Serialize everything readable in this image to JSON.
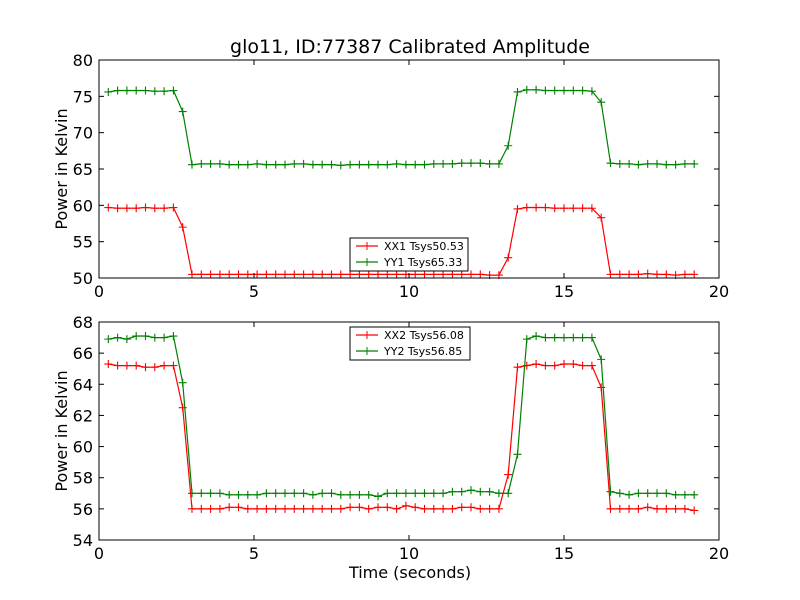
{
  "figure": {
    "title": "glo11, ID:77387 Calibrated Amplitude",
    "xlabel": "Time (seconds)"
  },
  "chart_data": [
    {
      "type": "line",
      "title": "glo11, ID:77387 Calibrated Amplitude",
      "xlabel": "",
      "ylabel": "Power in Kelvin",
      "xlim": [
        0,
        20
      ],
      "ylim": [
        50,
        80
      ],
      "xticks": [
        0,
        5,
        10,
        15,
        20
      ],
      "yticks": [
        50,
        55,
        60,
        65,
        70,
        75,
        80
      ],
      "legend_position": "lower-center",
      "x": [
        0.3,
        0.6,
        0.9,
        1.2,
        1.5,
        1.8,
        2.1,
        2.4,
        2.7,
        3.0,
        3.3,
        3.6,
        3.9,
        4.2,
        4.5,
        4.8,
        5.1,
        5.4,
        5.7,
        6.0,
        6.3,
        6.6,
        6.9,
        7.2,
        7.5,
        7.8,
        8.1,
        8.4,
        8.7,
        9.0,
        9.3,
        9.6,
        9.9,
        10.2,
        10.5,
        10.8,
        11.1,
        11.4,
        11.7,
        12.0,
        12.3,
        12.6,
        12.9,
        13.2,
        13.5,
        13.8,
        14.1,
        14.4,
        14.7,
        15.0,
        15.3,
        15.6,
        15.9,
        16.2,
        16.5,
        16.8,
        17.1,
        17.4,
        17.7,
        18.0,
        18.3,
        18.6,
        18.9,
        19.2
      ],
      "series": [
        {
          "name": "XX1 Tsys50.53",
          "color": "#ff0000",
          "values": [
            59.7,
            59.6,
            59.6,
            59.6,
            59.7,
            59.6,
            59.6,
            59.7,
            57.0,
            50.5,
            50.5,
            50.5,
            50.5,
            50.5,
            50.5,
            50.5,
            50.5,
            50.5,
            50.5,
            50.5,
            50.5,
            50.5,
            50.5,
            50.5,
            50.5,
            50.5,
            50.5,
            50.5,
            50.5,
            50.5,
            50.5,
            50.5,
            50.5,
            50.5,
            50.5,
            50.5,
            50.5,
            50.5,
            50.5,
            50.5,
            50.5,
            50.4,
            50.4,
            52.8,
            59.5,
            59.7,
            59.7,
            59.7,
            59.6,
            59.6,
            59.6,
            59.6,
            59.6,
            58.3,
            50.5,
            50.5,
            50.5,
            50.5,
            50.6,
            50.5,
            50.5,
            50.4,
            50.5,
            50.5
          ]
        },
        {
          "name": "YY1 Tsys65.33",
          "color": "#008000",
          "values": [
            75.6,
            75.8,
            75.8,
            75.8,
            75.8,
            75.7,
            75.7,
            75.8,
            72.9,
            65.6,
            65.7,
            65.7,
            65.7,
            65.6,
            65.6,
            65.6,
            65.7,
            65.6,
            65.6,
            65.6,
            65.7,
            65.7,
            65.6,
            65.6,
            65.6,
            65.5,
            65.6,
            65.6,
            65.6,
            65.6,
            65.6,
            65.7,
            65.6,
            65.6,
            65.6,
            65.7,
            65.7,
            65.7,
            65.8,
            65.8,
            65.8,
            65.7,
            65.7,
            68.2,
            75.6,
            75.9,
            75.9,
            75.8,
            75.8,
            75.8,
            75.8,
            75.8,
            75.7,
            74.2,
            65.8,
            65.7,
            65.7,
            65.6,
            65.7,
            65.7,
            65.6,
            65.6,
            65.7,
            65.7
          ]
        }
      ]
    },
    {
      "type": "line",
      "title": "",
      "xlabel": "Time (seconds)",
      "ylabel": "Power in Kelvin",
      "xlim": [
        0,
        20
      ],
      "ylim": [
        54,
        68
      ],
      "xticks": [
        0,
        5,
        10,
        15,
        20
      ],
      "yticks": [
        54,
        56,
        58,
        60,
        62,
        64,
        66,
        68
      ],
      "legend_position": "upper-center",
      "x": [
        0.3,
        0.6,
        0.9,
        1.2,
        1.5,
        1.8,
        2.1,
        2.4,
        2.7,
        3.0,
        3.3,
        3.6,
        3.9,
        4.2,
        4.5,
        4.8,
        5.1,
        5.4,
        5.7,
        6.0,
        6.3,
        6.6,
        6.9,
        7.2,
        7.5,
        7.8,
        8.1,
        8.4,
        8.7,
        9.0,
        9.3,
        9.6,
        9.9,
        10.2,
        10.5,
        10.8,
        11.1,
        11.4,
        11.7,
        12.0,
        12.3,
        12.6,
        12.9,
        13.2,
        13.5,
        13.8,
        14.1,
        14.4,
        14.7,
        15.0,
        15.3,
        15.6,
        15.9,
        16.2,
        16.5,
        16.8,
        17.1,
        17.4,
        17.7,
        18.0,
        18.3,
        18.6,
        18.9,
        19.2
      ],
      "series": [
        {
          "name": "XX2 Tsys56.08",
          "color": "#ff0000",
          "values": [
            65.3,
            65.2,
            65.2,
            65.2,
            65.1,
            65.1,
            65.2,
            65.2,
            62.5,
            56.0,
            56.0,
            56.0,
            56.0,
            56.1,
            56.1,
            56.0,
            56.0,
            56.0,
            56.0,
            56.0,
            56.0,
            56.0,
            56.0,
            56.0,
            56.0,
            56.0,
            56.1,
            56.1,
            56.0,
            56.1,
            56.1,
            56.0,
            56.2,
            56.1,
            56.0,
            56.0,
            56.0,
            56.0,
            56.1,
            56.1,
            56.0,
            56.0,
            56.0,
            58.2,
            65.1,
            65.2,
            65.3,
            65.2,
            65.2,
            65.3,
            65.3,
            65.2,
            65.2,
            63.8,
            56.0,
            56.0,
            56.0,
            56.0,
            56.1,
            56.0,
            56.0,
            56.0,
            56.0,
            55.9
          ]
        },
        {
          "name": "YY2 Tsys56.85",
          "color": "#008000",
          "values": [
            66.9,
            67.0,
            66.9,
            67.1,
            67.1,
            67.0,
            67.0,
            67.1,
            64.1,
            57.0,
            57.0,
            57.0,
            57.0,
            56.9,
            56.9,
            56.9,
            56.9,
            57.0,
            57.0,
            57.0,
            57.0,
            57.0,
            56.9,
            57.0,
            57.0,
            56.9,
            56.9,
            56.9,
            56.9,
            56.8,
            57.0,
            57.0,
            57.0,
            57.0,
            57.0,
            57.0,
            57.0,
            57.1,
            57.1,
            57.2,
            57.1,
            57.1,
            57.0,
            57.0,
            59.5,
            66.9,
            67.1,
            67.0,
            67.0,
            67.0,
            67.0,
            67.0,
            67.0,
            65.6,
            57.1,
            57.0,
            56.9,
            57.0,
            57.0,
            57.0,
            57.0,
            56.9,
            56.9,
            56.9
          ]
        }
      ]
    }
  ]
}
